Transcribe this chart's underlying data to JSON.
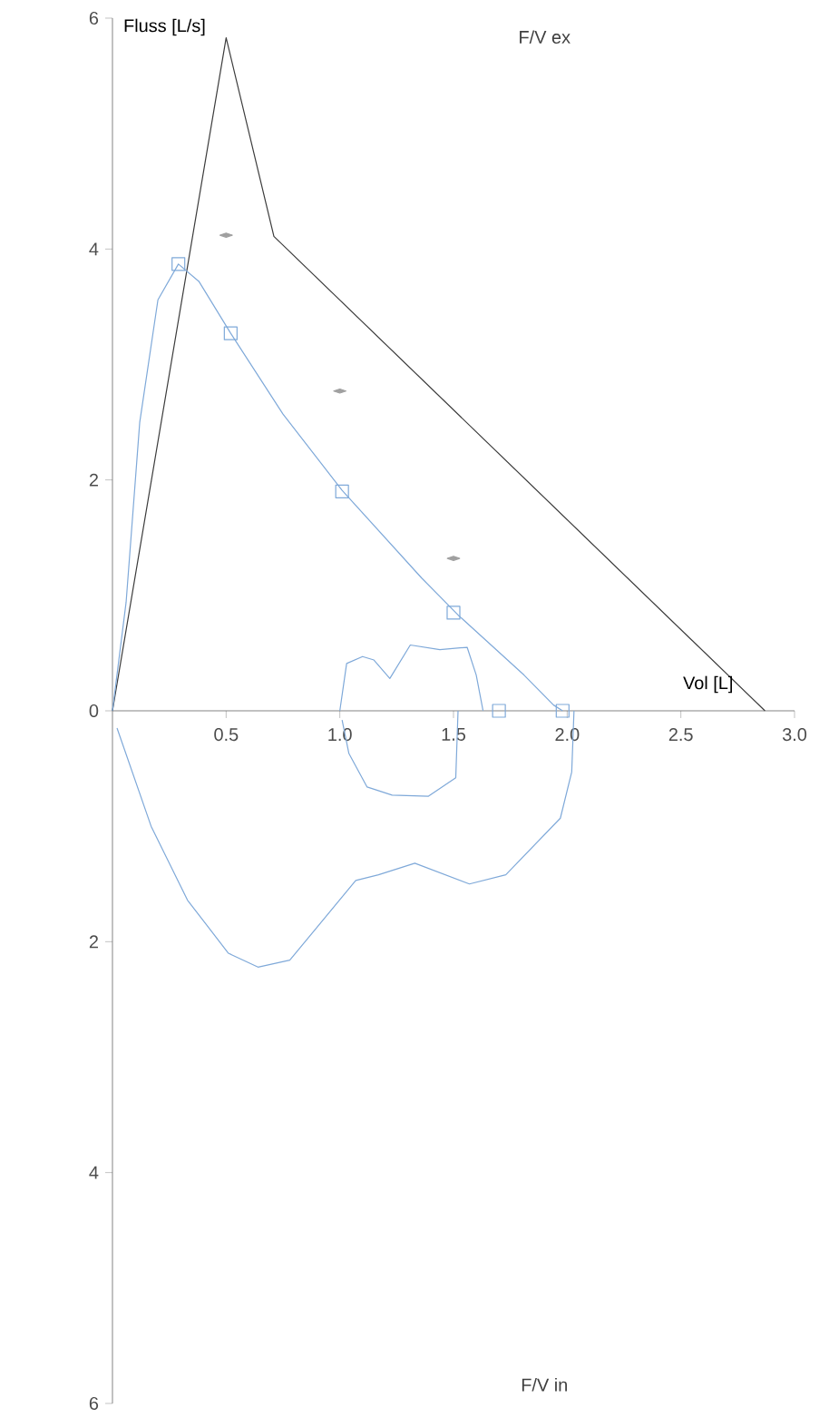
{
  "chart_data": {
    "type": "line",
    "xlabel": "Vol [L]",
    "ylabel": "Fluss [L/s]",
    "annotations": [
      "F/V ex",
      "F/V in"
    ],
    "xlim": [
      0,
      3.0
    ],
    "ylim": [
      -6,
      6
    ],
    "xticks": [
      0.5,
      {
        "value": 1,
        "label": "1.0"
      },
      1.5,
      {
        "value": 2,
        "label": "2.0"
      },
      2.5,
      {
        "value": 3,
        "label": "3.0"
      }
    ],
    "yticks": [
      {
        "value": -6,
        "label": "6"
      },
      {
        "value": -4,
        "label": "4"
      },
      {
        "value": -2,
        "label": "2"
      },
      0,
      2,
      4,
      6
    ],
    "series": [
      {
        "color": "#3c3c3c",
        "x": [
          0,
          0.5,
          0.71,
          2.87
        ],
        "values": [
          0,
          5.83,
          4.11,
          0
        ]
      },
      {
        "color": "#7fa9d9",
        "x": [
          0,
          0.06,
          0.12,
          0.2,
          0.29,
          0.38,
          0.52,
          0.75,
          1.01,
          1.36,
          1.52,
          1.81,
          1.94,
          1.98
        ],
        "values": [
          0,
          0.94,
          2.5,
          3.56,
          3.87,
          3.72,
          3.27,
          2.57,
          1.91,
          1.15,
          0.83,
          0.31,
          0.05,
          0
        ]
      },
      {
        "color": "#7fa9d9",
        "x": [
          0.02,
          0.17,
          0.33,
          0.51,
          0.64,
          0.78,
          1.07,
          1.17,
          1.33,
          1.57,
          1.73,
          1.97,
          2.02,
          2.03
        ],
        "values": [
          -0.15,
          -1.0,
          -1.64,
          -2.1,
          -2.22,
          -2.16,
          -1.47,
          -1.42,
          -1.32,
          -1.5,
          -1.42,
          -0.93,
          -0.53,
          0
        ]
      },
      {
        "color": "#7fa9d9",
        "x": [
          1.0,
          1.03,
          1.1,
          1.15,
          1.22,
          1.31,
          1.44,
          1.56,
          1.6,
          1.63
        ],
        "values": [
          0,
          0.41,
          0.47,
          0.44,
          0.28,
          0.57,
          0.53,
          0.55,
          0.31,
          0
        ]
      },
      {
        "color": "#7fa9d9",
        "x": [
          1.01,
          1.04,
          1.12,
          1.23,
          1.39,
          1.51,
          1.52
        ],
        "values": [
          -0.08,
          -0.37,
          -0.66,
          -0.73,
          -0.74,
          -0.58,
          0
        ]
      },
      {
        "type": "scatter",
        "marker": "square",
        "color": "#7fa9d9",
        "x": [
          0.29,
          0.52,
          1.01,
          1.5,
          1.7,
          1.98
        ],
        "values": [
          3.87,
          3.27,
          1.9,
          0.85,
          0,
          0
        ]
      },
      {
        "type": "scatter",
        "marker": "diamond",
        "color": "#a0a0a0",
        "x": [
          0.5,
          1.0,
          1.5
        ],
        "values": [
          4.12,
          2.77,
          1.32
        ]
      }
    ]
  }
}
